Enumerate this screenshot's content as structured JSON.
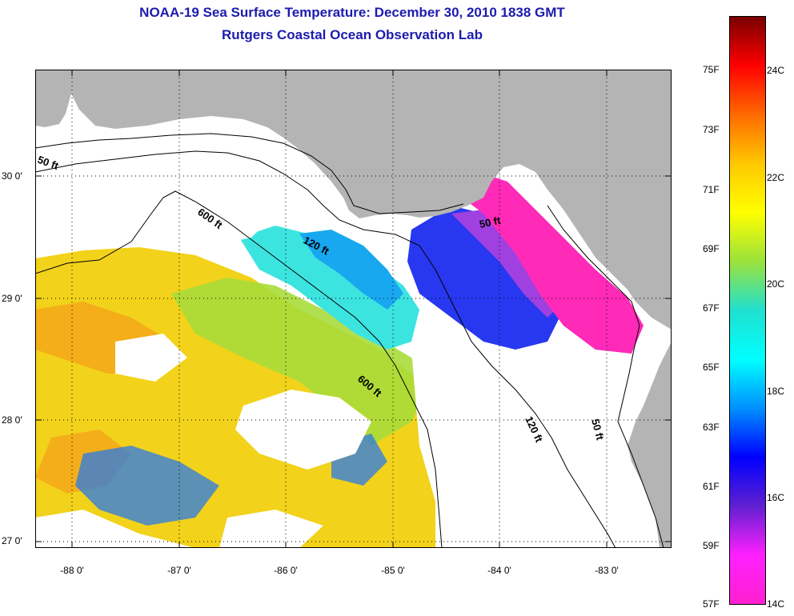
{
  "header": {
    "title_line_1": "NOAA-19 Sea Surface Temperature:  December 30, 2010 1838 GMT",
    "title_line_2": "Rutgers Coastal Ocean Observation Lab"
  },
  "map": {
    "latitude_labels": [
      "30 0'",
      "29 0'",
      "28 0'",
      "27 0'"
    ],
    "longitude_labels": [
      "-88 0'",
      "-87 0'",
      "-86 0'",
      "-85 0'",
      "-84 0'",
      "-83 0'"
    ],
    "contour_labels": {
      "shelf_50_west": "50 ft",
      "slope_600_north": "600 ft",
      "shelf_120_north": "120 ft",
      "shelf_50_east": "50 ft",
      "slope_600_south": "600 ft",
      "shelf_120_south": "120 ft",
      "shelf_50_south": "50 ft"
    },
    "colors": {
      "land": "#b4b4b4",
      "cloud_no_data": "#ffffff",
      "contour_line": "#000000",
      "grid": "#000000"
    }
  },
  "colorbar": {
    "fahrenheit_labels": [
      "75F",
      "73F",
      "71F",
      "69F",
      "67F",
      "65F",
      "63F",
      "61F",
      "59F",
      "57F"
    ],
    "celsius_labels": [
      "24C",
      "22C",
      "20C",
      "18C",
      "16C",
      "14C"
    ],
    "gradient_colors": [
      "#7a0000",
      "#ff0000",
      "#ff6a00",
      "#ffc800",
      "#ffff00",
      "#9be23c",
      "#20e0d0",
      "#00ffff",
      "#0090ff",
      "#0000ff",
      "#6020d0",
      "#ff20ff",
      "#ff20d0"
    ]
  }
}
